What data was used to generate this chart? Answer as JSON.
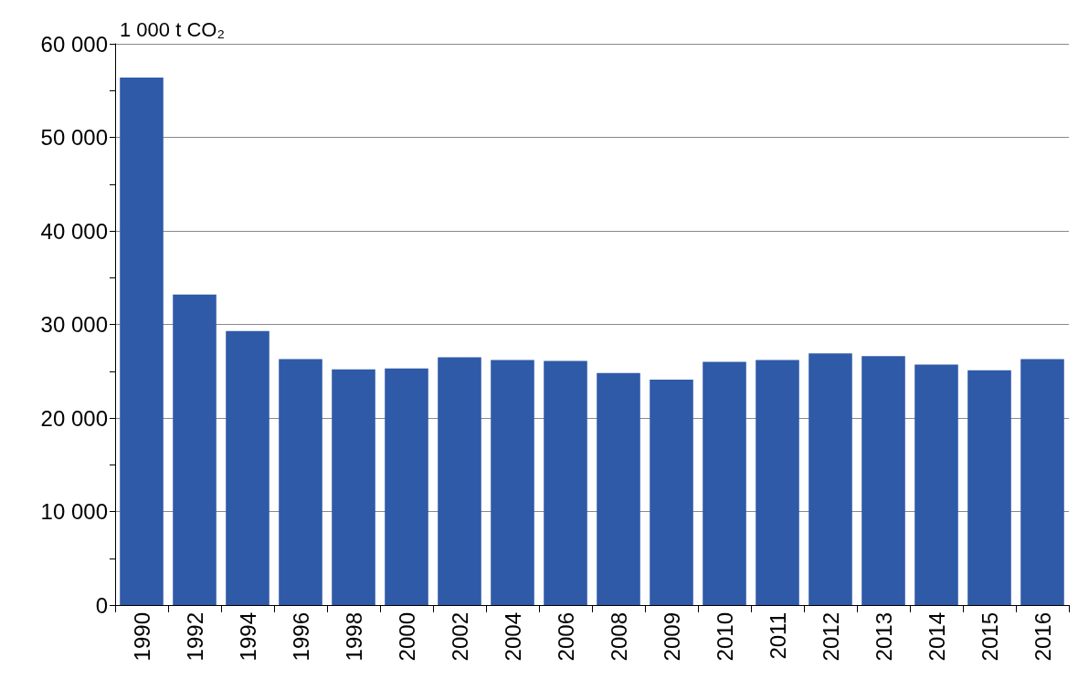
{
  "chart_data": {
    "type": "bar",
    "ylabel": "1 000 t CO₂",
    "categories": [
      "1990",
      "1992",
      "1994",
      "1996",
      "1998",
      "2000",
      "2002",
      "2004",
      "2006",
      "2008",
      "2009",
      "2010",
      "2011",
      "2012",
      "2013",
      "2014",
      "2015",
      "2016"
    ],
    "values": [
      56400,
      33200,
      29300,
      26300,
      25200,
      25300,
      26500,
      26200,
      26100,
      24800,
      24100,
      26000,
      26200,
      26900,
      26600,
      25700,
      25100,
      26300
    ],
    "color": "#2f5aa8",
    "ylim": [
      0,
      60000
    ],
    "yticks": [
      {
        "value": 0,
        "label": "0"
      },
      {
        "value": 5000,
        "label": null
      },
      {
        "value": 10000,
        "label": "10 000"
      },
      {
        "value": 15000,
        "label": null
      },
      {
        "value": 20000,
        "label": "20 000"
      },
      {
        "value": 25000,
        "label": null
      },
      {
        "value": 30000,
        "label": "30 000"
      },
      {
        "value": 35000,
        "label": null
      },
      {
        "value": 40000,
        "label": "40 000"
      },
      {
        "value": 45000,
        "label": null
      },
      {
        "value": 50000,
        "label": "50 000"
      },
      {
        "value": 55000,
        "label": null
      },
      {
        "value": 60000,
        "label": "60 000"
      }
    ],
    "grid": "y"
  }
}
